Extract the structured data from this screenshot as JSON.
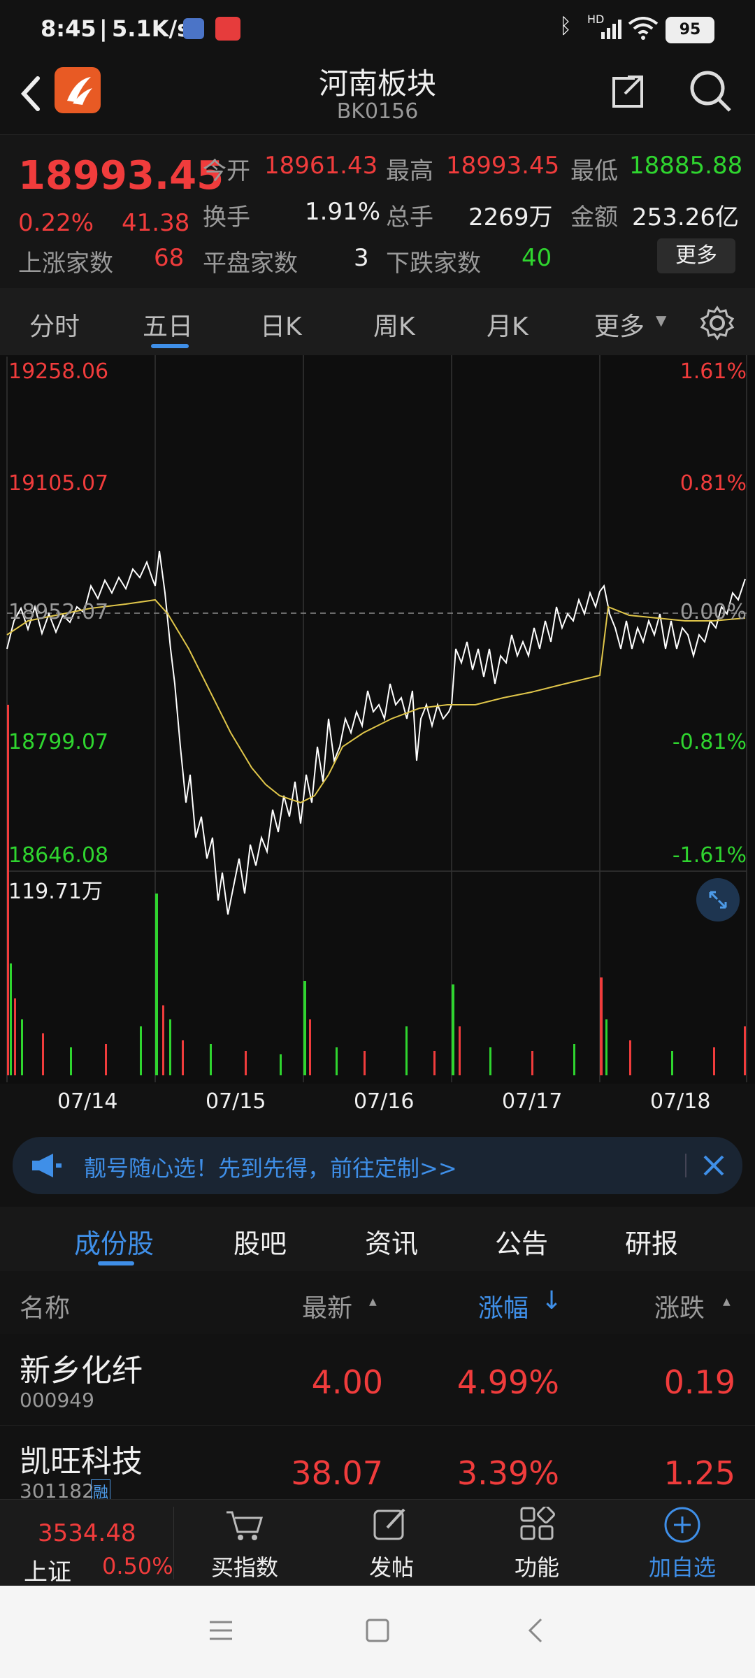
{
  "status": {
    "time": "8:45",
    "speed": "5.1K/s",
    "battery": "95",
    "hd": "HD"
  },
  "header": {
    "title": "河南板块",
    "code": "BK0156"
  },
  "quote": {
    "price": "18993.45",
    "pct": "0.22%",
    "chg": "41.38",
    "open_label": "今开",
    "open": "18961.43",
    "high_label": "最高",
    "high": "18993.45",
    "low_label": "最低",
    "low": "18885.88",
    "turnover_label": "换手",
    "turnover": "1.91%",
    "vol_label": "总手",
    "vol": "2269万",
    "amount_label": "金额",
    "amount": "253.26亿",
    "up_label": "上涨家数",
    "up": "68",
    "flat_label": "平盘家数",
    "flat": "3",
    "down_label": "下跌家数",
    "down": "40",
    "more": "更多"
  },
  "chart_tabs": [
    "分时",
    "五日",
    "日K",
    "周K",
    "月K",
    "更多"
  ],
  "chart": {
    "ylabels_left": [
      "19258.06",
      "19105.07",
      "18952.07",
      "18799.07",
      "18646.08"
    ],
    "ylabels_right": [
      "1.61%",
      "0.81%",
      "0.00%",
      "-0.81%",
      "-1.61%"
    ],
    "vol_max": "119.71万",
    "dates": [
      "07/14",
      "07/15",
      "07/16",
      "07/17",
      "07/18"
    ],
    "colors": {
      "up": "#f03c3c",
      "down": "#2fd52f",
      "price": "#ffffff",
      "avg": "#e0c64a"
    }
  },
  "banner": {
    "text": "靓号随心选！先到先得，前往定制>>"
  },
  "stock_tabs": [
    "成份股",
    "股吧",
    "资讯",
    "公告",
    "研报"
  ],
  "table": {
    "headers": {
      "name": "名称",
      "latest": "最新",
      "pct": "涨幅",
      "chg": "涨跌"
    },
    "rows": [
      {
        "name": "新乡化纤",
        "code": "000949",
        "latest": "4.00",
        "pct": "4.99%",
        "chg": "0.19",
        "tag": ""
      },
      {
        "name": "凯旺科技",
        "code": "301182",
        "latest": "38.07",
        "pct": "3.39%",
        "chg": "1.25",
        "tag": "融"
      }
    ]
  },
  "bottom_nav": {
    "index_value": "3534.48",
    "index_name": "上证",
    "index_pct": "0.50%",
    "items": [
      "买指数",
      "发帖",
      "功能",
      "加自选"
    ]
  }
}
